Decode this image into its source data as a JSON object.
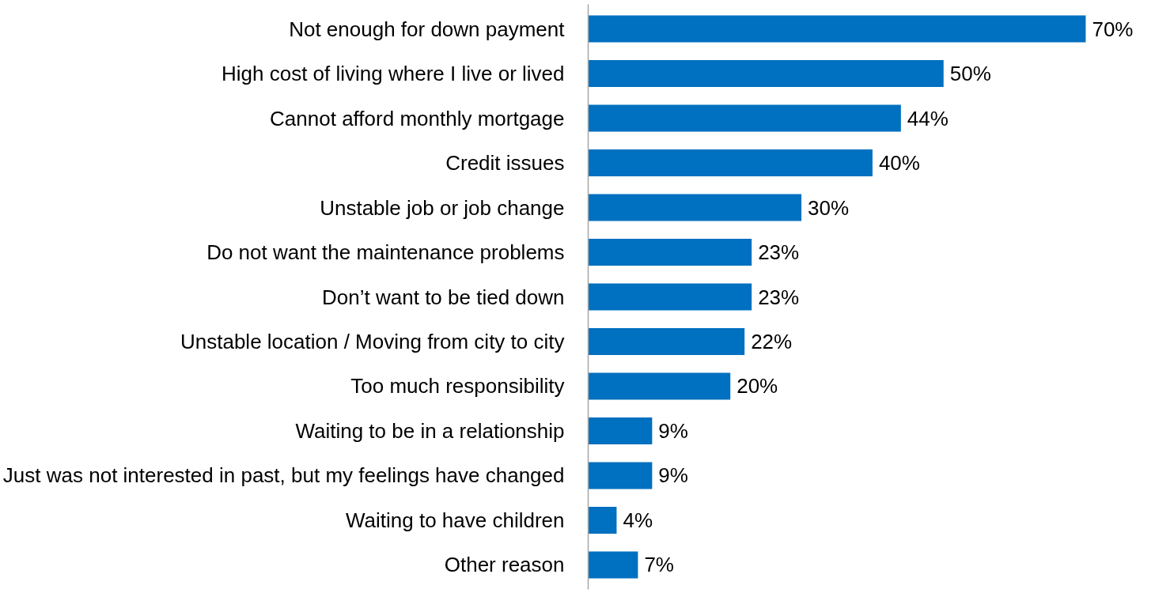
{
  "chart_data": {
    "type": "bar",
    "orientation": "horizontal",
    "categories": [
      "Not enough for down payment",
      "High cost of living where I live or lived",
      "Cannot afford monthly mortgage",
      "Credit issues",
      "Unstable job or job change",
      "Do not want the maintenance problems",
      "Don’t want to be tied down",
      "Unstable location / Moving from city to city",
      "Too much responsibility",
      "Waiting to be in a relationship",
      "Just was not interested in past, but my feelings have changed",
      "Waiting to have children",
      "Other reason"
    ],
    "values": [
      70,
      50,
      44,
      40,
      30,
      23,
      23,
      22,
      20,
      9,
      9,
      4,
      7
    ],
    "value_labels": [
      "70%",
      "50%",
      "44%",
      "40%",
      "30%",
      "23%",
      "23%",
      "22%",
      "20%",
      "9%",
      "9%",
      "4%",
      "7%"
    ],
    "color": "#0070c0",
    "tick_labels": "y",
    "grid": false
  }
}
